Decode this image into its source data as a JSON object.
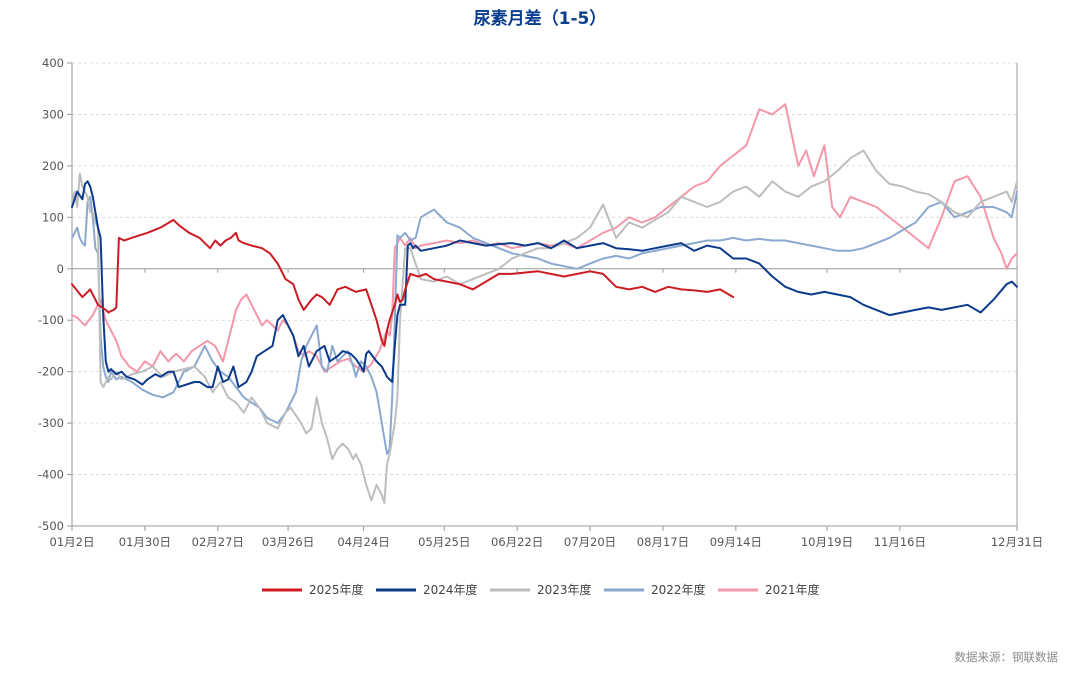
{
  "title": "尿素月差（1-5）",
  "source": "数据来源：钢联数据",
  "chart_data": {
    "type": "line",
    "title": "尿素月差（1-5）",
    "xlabel": "",
    "ylabel": "",
    "ylim": [
      -500,
      400
    ],
    "yticks": [
      400,
      300,
      200,
      100,
      0,
      -100,
      -200,
      -300,
      -400,
      -500
    ],
    "x_tick_labels": [
      "01月2日",
      "01月30日",
      "02月27日",
      "03月26日",
      "04月24日",
      "05月25日",
      "06月22日",
      "07月20日",
      "08月17日",
      "09月14日",
      "10月19日",
      "11月16日",
      "12月31日"
    ],
    "x_tick_days": [
      1,
      29,
      57,
      84,
      113,
      144,
      172,
      200,
      228,
      256,
      291,
      319,
      364
    ],
    "x_range_days": [
      1,
      364
    ],
    "grid": "horizontal dashed",
    "legend_position": "bottom",
    "series": [
      {
        "name": "2025年度",
        "color": "#cc1b22",
        "x": [
          1,
          5,
          8,
          11,
          14,
          15,
          16,
          17,
          18,
          19,
          21,
          25,
          30,
          35,
          40,
          42,
          46,
          50,
          52,
          54,
          56,
          58,
          60,
          62,
          64,
          65,
          67,
          70,
          74,
          77,
          80,
          83,
          86,
          88,
          90,
          93,
          95,
          97,
          100,
          103,
          106,
          110,
          114,
          116,
          118,
          119,
          120,
          121,
          122,
          123,
          125,
          126,
          127,
          128,
          129,
          131,
          134,
          137,
          140,
          145,
          150,
          155,
          160,
          165,
          170,
          180,
          190,
          200,
          205,
          210,
          215,
          220,
          225,
          230,
          235,
          240,
          245,
          250,
          255
        ],
        "y": [
          -30,
          -55,
          -40,
          -70,
          -80,
          -85,
          -82,
          -80,
          -75,
          60,
          55,
          62,
          70,
          80,
          95,
          85,
          70,
          60,
          50,
          40,
          55,
          45,
          55,
          60,
          70,
          55,
          50,
          45,
          40,
          30,
          10,
          -20,
          -30,
          -60,
          -80,
          -60,
          -50,
          -55,
          -70,
          -40,
          -35,
          -45,
          -40,
          -70,
          -100,
          -120,
          -140,
          -150,
          -120,
          -100,
          -70,
          -50,
          -65,
          -60,
          -40,
          -10,
          -15,
          -10,
          -20,
          -25,
          -30,
          -40,
          -25,
          -10,
          -10,
          -5,
          -15,
          -5,
          -10,
          -35,
          -40,
          -35,
          -45,
          -35,
          -40,
          -42,
          -45,
          -40,
          -55
        ]
      },
      {
        "name": "2024年度",
        "color": "#0d3b8c",
        "x": [
          1,
          3,
          5,
          6,
          7,
          8,
          9,
          10,
          11,
          12,
          13,
          14,
          15,
          16,
          18,
          20,
          22,
          25,
          28,
          30,
          33,
          35,
          38,
          40,
          42,
          45,
          48,
          50,
          53,
          55,
          57,
          59,
          61,
          63,
          65,
          68,
          70,
          72,
          75,
          78,
          80,
          82,
          84,
          86,
          88,
          90,
          92,
          95,
          98,
          100,
          103,
          105,
          108,
          110,
          112,
          113,
          114,
          115,
          118,
          120,
          122,
          124,
          125,
          126,
          127,
          129,
          130,
          131,
          132,
          133,
          135,
          140,
          145,
          150,
          155,
          160,
          165,
          170,
          175,
          180,
          185,
          190,
          195,
          200,
          205,
          210,
          215,
          220,
          225,
          230,
          235,
          240,
          245,
          250,
          255,
          260,
          265,
          270,
          275,
          280,
          285,
          290,
          295,
          300,
          305,
          310,
          315,
          320,
          325,
          330,
          335,
          340,
          345,
          350,
          355,
          360,
          362,
          364
        ],
        "y": [
          120,
          150,
          135,
          165,
          170,
          160,
          140,
          110,
          80,
          60,
          -90,
          -180,
          -200,
          -195,
          -205,
          -200,
          -210,
          -215,
          -225,
          -215,
          -205,
          -210,
          -200,
          -200,
          -230,
          -225,
          -220,
          -220,
          -230,
          -230,
          -190,
          -220,
          -215,
          -190,
          -230,
          -220,
          -200,
          -170,
          -160,
          -150,
          -100,
          -90,
          -110,
          -130,
          -170,
          -150,
          -190,
          -160,
          -150,
          -180,
          -170,
          -160,
          -165,
          -175,
          -190,
          -200,
          -165,
          -160,
          -180,
          -190,
          -210,
          -220,
          -150,
          -90,
          -70,
          -70,
          45,
          50,
          40,
          45,
          35,
          40,
          45,
          55,
          50,
          45,
          48,
          50,
          45,
          50,
          40,
          55,
          40,
          45,
          50,
          40,
          38,
          35,
          40,
          45,
          50,
          35,
          45,
          40,
          20,
          20,
          10,
          -15,
          -35,
          -45,
          -50,
          -45,
          -50,
          -55,
          -70,
          -80,
          -90,
          -85,
          -80,
          -75,
          -80,
          -75,
          -70,
          -85,
          -60,
          -30,
          -25,
          -35
        ]
      },
      {
        "name": "2023年度",
        "color": "#bdbdbd",
        "x": [
          1,
          2,
          3,
          4,
          5,
          6,
          7,
          8,
          9,
          10,
          11,
          12,
          13,
          14,
          15,
          16,
          18,
          20,
          24,
          28,
          32,
          36,
          40,
          44,
          48,
          50,
          52,
          55,
          58,
          61,
          64,
          67,
          70,
          73,
          76,
          80,
          83,
          85,
          87,
          89,
          91,
          93,
          95,
          97,
          99,
          101,
          103,
          105,
          107,
          109,
          110,
          112,
          114,
          116,
          118,
          120,
          121,
          122,
          123,
          124,
          125,
          126,
          127,
          129,
          131,
          135,
          140,
          145,
          150,
          155,
          160,
          165,
          170,
          175,
          180,
          185,
          190,
          195,
          200,
          205,
          210,
          215,
          220,
          225,
          230,
          235,
          240,
          245,
          250,
          255,
          260,
          265,
          270,
          275,
          280,
          285,
          290,
          295,
          300,
          305,
          310,
          315,
          320,
          325,
          330,
          335,
          340,
          345,
          350,
          355,
          360,
          362,
          364
        ],
        "y": [
          130,
          150,
          120,
          185,
          160,
          150,
          140,
          110,
          110,
          90,
          80,
          -220,
          -230,
          -220,
          -210,
          -215,
          -200,
          -215,
          -205,
          -200,
          -190,
          -210,
          -200,
          -195,
          -190,
          -200,
          -210,
          -240,
          -220,
          -250,
          -260,
          -280,
          -250,
          -270,
          -300,
          -310,
          -280,
          -270,
          -285,
          -300,
          -320,
          -310,
          -250,
          -300,
          -330,
          -370,
          -350,
          -340,
          -350,
          -370,
          -360,
          -380,
          -420,
          -450,
          -420,
          -440,
          -455,
          -380,
          -360,
          -330,
          -300,
          -250,
          -100,
          40,
          40,
          -20,
          -25,
          -15,
          -30,
          -20,
          -10,
          0,
          20,
          30,
          40,
          40,
          50,
          60,
          80,
          125,
          60,
          90,
          80,
          95,
          110,
          140,
          130,
          120,
          130,
          150,
          160,
          140,
          170,
          150,
          140,
          160,
          170,
          190,
          215,
          230,
          190,
          165,
          160,
          150,
          145,
          130,
          110,
          100,
          130,
          140,
          150,
          130,
          170
        ]
      },
      {
        "name": "2022年度",
        "color": "#8aa8d0",
        "x": [
          1,
          2,
          3,
          4,
          5,
          6,
          7,
          8,
          9,
          10,
          11,
          12,
          13,
          14,
          15,
          16,
          18,
          20,
          24,
          28,
          32,
          36,
          40,
          44,
          48,
          50,
          52,
          55,
          58,
          61,
          64,
          67,
          70,
          73,
          76,
          80,
          83,
          85,
          87,
          89,
          91,
          93,
          95,
          97,
          99,
          101,
          103,
          105,
          107,
          109,
          110,
          112,
          114,
          116,
          118,
          120,
          121,
          122,
          123,
          124,
          125,
          126,
          127,
          129,
          131,
          133,
          135,
          140,
          145,
          150,
          155,
          160,
          165,
          170,
          175,
          180,
          185,
          190,
          195,
          200,
          205,
          210,
          215,
          220,
          225,
          230,
          235,
          240,
          245,
          250,
          255,
          260,
          265,
          270,
          275,
          280,
          285,
          290,
          295,
          300,
          305,
          310,
          315,
          320,
          325,
          330,
          335,
          340,
          345,
          350,
          355,
          360,
          362,
          364
        ],
        "y": [
          60,
          70,
          80,
          60,
          50,
          45,
          130,
          140,
          100,
          40,
          30,
          -130,
          -190,
          -210,
          -220,
          -200,
          -215,
          -210,
          -220,
          -235,
          -245,
          -250,
          -240,
          -200,
          -190,
          -170,
          -150,
          -180,
          -200,
          -210,
          -230,
          -250,
          -260,
          -270,
          -290,
          -300,
          -280,
          -260,
          -240,
          -180,
          -150,
          -130,
          -110,
          -190,
          -200,
          -150,
          -180,
          -170,
          -160,
          -190,
          -210,
          -180,
          -190,
          -210,
          -240,
          -300,
          -330,
          -360,
          -350,
          -250,
          -100,
          65,
          60,
          70,
          55,
          60,
          100,
          115,
          90,
          80,
          60,
          50,
          40,
          30,
          25,
          20,
          10,
          5,
          0,
          10,
          20,
          25,
          20,
          30,
          35,
          40,
          45,
          50,
          55,
          55,
          60,
          55,
          58,
          55,
          55,
          50,
          45,
          40,
          35,
          35,
          40,
          50,
          60,
          75,
          90,
          120,
          130,
          100,
          110,
          120,
          120,
          110,
          100,
          150
        ]
      },
      {
        "name": "2021年度",
        "color": "#f497a8",
        "x": [
          1,
          3,
          6,
          9,
          12,
          14,
          15,
          16,
          18,
          20,
          23,
          26,
          29,
          32,
          35,
          38,
          41,
          44,
          47,
          50,
          53,
          56,
          59,
          62,
          64,
          66,
          68,
          70,
          72,
          74,
          76,
          78,
          80,
          82,
          84,
          86,
          88,
          90,
          92,
          95,
          98,
          101,
          104,
          107,
          110,
          113,
          116,
          119,
          122,
          123,
          124,
          125,
          127,
          129,
          131,
          133,
          135,
          140,
          145,
          150,
          155,
          160,
          165,
          170,
          175,
          180,
          185,
          190,
          195,
          200,
          205,
          210,
          215,
          220,
          225,
          230,
          235,
          240,
          245,
          250,
          255,
          260,
          265,
          270,
          275,
          280,
          283,
          286,
          290,
          293,
          296,
          300,
          305,
          310,
          315,
          320,
          325,
          330,
          335,
          340,
          345,
          350,
          355,
          358,
          360,
          362,
          364
        ],
        "y": [
          -90,
          -95,
          -110,
          -90,
          -60,
          -100,
          -110,
          -120,
          -140,
          -170,
          -190,
          -200,
          -180,
          -190,
          -160,
          -180,
          -165,
          -180,
          -160,
          -150,
          -140,
          -150,
          -180,
          -120,
          -80,
          -60,
          -50,
          -70,
          -90,
          -110,
          -100,
          -110,
          -120,
          -100,
          -110,
          -130,
          -160,
          -170,
          -160,
          -170,
          -200,
          -190,
          -180,
          -175,
          -190,
          -200,
          -185,
          -160,
          -120,
          -130,
          -90,
          40,
          60,
          45,
          60,
          40,
          45,
          50,
          55,
          50,
          55,
          45,
          50,
          40,
          45,
          50,
          45,
          50,
          40,
          55,
          70,
          80,
          100,
          90,
          100,
          120,
          140,
          160,
          170,
          200,
          220,
          240,
          310,
          300,
          320,
          200,
          230,
          180,
          240,
          120,
          100,
          140,
          130,
          120,
          100,
          80,
          60,
          40,
          100,
          170,
          180,
          140,
          60,
          30,
          0,
          20,
          30
        ]
      }
    ]
  }
}
